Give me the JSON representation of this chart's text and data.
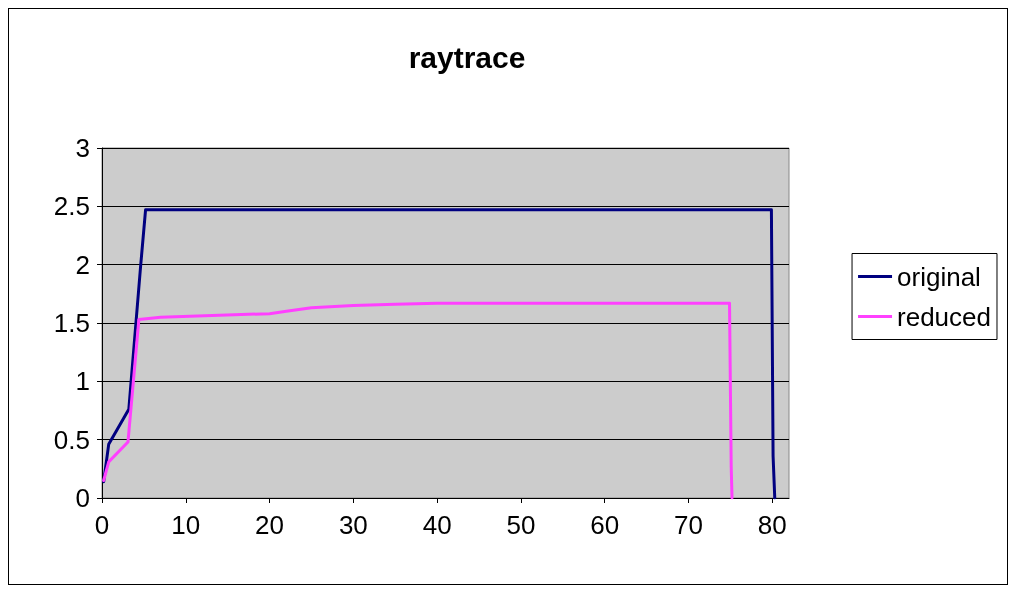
{
  "chart_data": {
    "type": "line",
    "title": "raytrace",
    "xlim": [
      0,
      82
    ],
    "xticks": [
      0,
      10,
      20,
      30,
      40,
      50,
      60,
      70,
      80
    ],
    "ylim": [
      0,
      3
    ],
    "yticks": [
      0,
      0.5,
      1,
      1.5,
      2,
      2.5,
      3
    ],
    "grid": "y",
    "legend": "right",
    "marker": "none",
    "line_style": "solid",
    "series": [
      {
        "name": "original",
        "color": "#000080",
        "x": [
          0.2,
          0.8,
          3.2,
          4.6,
          5.2,
          20,
          40,
          60,
          79.9,
          80.1,
          80.3
        ],
        "values": [
          0.14,
          0.46,
          0.76,
          1.98,
          2.47,
          2.47,
          2.47,
          2.47,
          2.47,
          0.36,
          0
        ]
      },
      {
        "name": "reduced",
        "color": "#ff40ff",
        "x": [
          0.2,
          0.8,
          3.1,
          4.4,
          7,
          20,
          22,
          25,
          30,
          35,
          40,
          74.9,
          75.1,
          75.2
        ],
        "values": [
          0.15,
          0.31,
          0.48,
          1.53,
          1.55,
          1.58,
          1.6,
          1.63,
          1.65,
          1.66,
          1.67,
          1.67,
          0.27,
          0
        ]
      }
    ]
  }
}
